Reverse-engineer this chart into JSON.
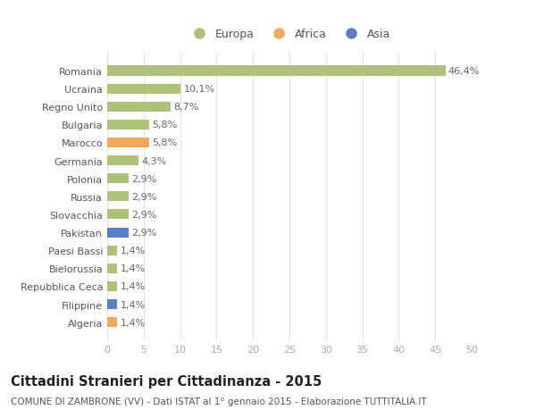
{
  "countries": [
    "Romania",
    "Ucraina",
    "Regno Unito",
    "Bulgaria",
    "Marocco",
    "Germania",
    "Polonia",
    "Russia",
    "Slovacchia",
    "Pakistan",
    "Paesi Bassi",
    "Bielorussia",
    "Repubblica Ceca",
    "Filippine",
    "Algeria"
  ],
  "values": [
    46.4,
    10.1,
    8.7,
    5.8,
    5.8,
    4.3,
    2.9,
    2.9,
    2.9,
    2.9,
    1.4,
    1.4,
    1.4,
    1.4,
    1.4
  ],
  "labels": [
    "46,4%",
    "10,1%",
    "8,7%",
    "5,8%",
    "5,8%",
    "4,3%",
    "2,9%",
    "2,9%",
    "2,9%",
    "2,9%",
    "1,4%",
    "1,4%",
    "1,4%",
    "1,4%",
    "1,4%"
  ],
  "continents": [
    "Europa",
    "Europa",
    "Europa",
    "Europa",
    "Africa",
    "Europa",
    "Europa",
    "Europa",
    "Europa",
    "Asia",
    "Europa",
    "Europa",
    "Europa",
    "Asia",
    "Africa"
  ],
  "colors": {
    "Europa": "#adc178",
    "Africa": "#f4a85a",
    "Asia": "#5b7ec9"
  },
  "xlim": [
    0,
    50
  ],
  "xticks": [
    0,
    5,
    10,
    15,
    20,
    25,
    30,
    35,
    40,
    45,
    50
  ],
  "title": "Cittadini Stranieri per Cittadinanza - 2015",
  "subtitle": "COMUNE DI ZAMBRONE (VV) - Dati ISTAT al 1° gennaio 2015 - Elaborazione TUTTITALIA.IT",
  "bg_color": "#ffffff",
  "bar_height": 0.55,
  "label_fontsize": 8,
  "tick_fontsize": 8,
  "ytick_fontsize": 8,
  "title_fontsize": 10.5,
  "subtitle_fontsize": 7.5,
  "legend_labels": [
    "Europa",
    "Africa",
    "Asia"
  ]
}
